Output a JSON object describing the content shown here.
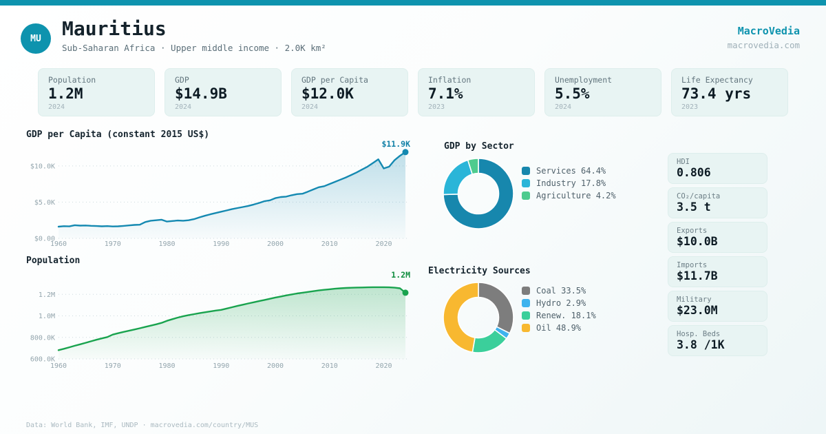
{
  "header": {
    "badge": "MU",
    "title": "Mauritius",
    "subtitle": "Sub-Saharan Africa · Upper middle income · 2.0K km²",
    "brand": "MacroVedia",
    "brand_url": "macrovedia.com"
  },
  "stats": {
    "items": [
      {
        "label": "Population",
        "value": "1.2M",
        "year": "2024"
      },
      {
        "label": "GDP",
        "value": "$14.9B",
        "year": "2024"
      },
      {
        "label": "GDP per Capita",
        "value": "$12.0K",
        "year": "2024"
      },
      {
        "label": "Inflation",
        "value": "7.1%",
        "year": "2023"
      },
      {
        "label": "Unemployment",
        "value": "5.5%",
        "year": "2024"
      },
      {
        "label": "Life Expectancy",
        "value": "73.4 yrs",
        "year": "2023"
      }
    ]
  },
  "side_cards": {
    "items": [
      {
        "label": "HDI",
        "value": "0.806"
      },
      {
        "label": "CO₂/capita",
        "value": "3.5 t"
      },
      {
        "label": "Exports",
        "value": "$10.0B"
      },
      {
        "label": "Imports",
        "value": "$11.7B"
      },
      {
        "label": "Military",
        "value": "$23.0M"
      },
      {
        "label": "Hosp. Beds",
        "value": "3.8 /1K"
      }
    ]
  },
  "footer": {
    "text": "Data: World Bank, IMF, UNDP · macrovedia.com/country/MUS"
  },
  "colors": {
    "accent": "#0e93ae",
    "gdp_line": "#1489b1",
    "pop_line": "#19a34e"
  },
  "chart_data": [
    {
      "type": "area",
      "title": "GDP per Capita (constant 2015 US$)",
      "x_start": 1960,
      "x_end": 2024,
      "values": [
        1620,
        1680,
        1650,
        1820,
        1760,
        1780,
        1730,
        1700,
        1660,
        1690,
        1640,
        1660,
        1720,
        1790,
        1850,
        1880,
        2250,
        2430,
        2500,
        2580,
        2320,
        2400,
        2460,
        2430,
        2500,
        2650,
        2900,
        3120,
        3320,
        3500,
        3680,
        3850,
        4030,
        4180,
        4330,
        4480,
        4670,
        4890,
        5130,
        5250,
        5550,
        5700,
        5760,
        5950,
        6100,
        6160,
        6450,
        6750,
        7050,
        7200,
        7500,
        7800,
        8100,
        8400,
        8750,
        9100,
        9500,
        9900,
        10400,
        10900,
        9650,
        9900,
        10800,
        11400,
        11900
      ],
      "ylim": [
        0,
        13500
      ],
      "yticks": [
        {
          "v": 0,
          "label": "$0.00"
        },
        {
          "v": 5000,
          "label": "$5.0K"
        },
        {
          "v": 10000,
          "label": "$10.0K"
        }
      ],
      "xticks": [
        {
          "v": 1960,
          "label": "1960"
        },
        {
          "v": 1970,
          "label": "1970"
        },
        {
          "v": 1980,
          "label": "1980"
        },
        {
          "v": 1990,
          "label": "1990"
        },
        {
          "v": 2000,
          "label": "2000"
        },
        {
          "v": 2010,
          "label": "2010"
        },
        {
          "v": 2020,
          "label": "2020"
        }
      ],
      "end_label": "$11.9K",
      "color": "#1489b1",
      "end_label_color": "#0f7fa6",
      "grid": true,
      "legend_position": "none"
    },
    {
      "type": "area",
      "title": "Population",
      "x_start": 1960,
      "x_end": 2024,
      "values": [
        681,
        694,
        708,
        722,
        736,
        750,
        764,
        778,
        791,
        803,
        826,
        839,
        851,
        862,
        873,
        885,
        897,
        909,
        921,
        935,
        954,
        969,
        984,
        996,
        1007,
        1016,
        1025,
        1033,
        1041,
        1049,
        1056,
        1068,
        1080,
        1092,
        1104,
        1115,
        1126,
        1137,
        1148,
        1159,
        1170,
        1180,
        1190,
        1199,
        1208,
        1215,
        1222,
        1229,
        1236,
        1242,
        1247,
        1252,
        1256,
        1259,
        1261,
        1263,
        1264,
        1265,
        1266,
        1266,
        1266,
        1265,
        1262,
        1256,
        1215
      ],
      "unit": "thousands",
      "ylim": [
        600,
        1400
      ],
      "yticks": [
        {
          "v": 600,
          "label": "600.0K"
        },
        {
          "v": 800,
          "label": "800.0K"
        },
        {
          "v": 1000,
          "label": "1.0M"
        },
        {
          "v": 1200,
          "label": "1.2M"
        }
      ],
      "xticks": [
        {
          "v": 1960,
          "label": "1960"
        },
        {
          "v": 1970,
          "label": "1970"
        },
        {
          "v": 1980,
          "label": "1980"
        },
        {
          "v": 1990,
          "label": "1990"
        },
        {
          "v": 2000,
          "label": "2000"
        },
        {
          "v": 2010,
          "label": "2010"
        },
        {
          "v": 2020,
          "label": "2020"
        }
      ],
      "end_label": "1.2M",
      "color": "#19a34e",
      "end_label_color": "#0e8c3d",
      "grid": true,
      "legend_position": "none"
    },
    {
      "type": "pie",
      "title": "GDP by Sector",
      "legend_position": "right",
      "slices": [
        {
          "label": "Services",
          "pct": 64.4,
          "color": "#1787ad",
          "legend": "Services 64.4%"
        },
        {
          "label": "Industry",
          "pct": 17.8,
          "color": "#2ab5d8",
          "legend": "Industry 17.8%"
        },
        {
          "label": "Agriculture",
          "pct": 4.2,
          "color": "#4ecb8e",
          "legend": "Agriculture 4.2%"
        }
      ]
    },
    {
      "type": "pie",
      "title": "Electricity Sources",
      "legend_position": "right",
      "slices": [
        {
          "label": "Coal",
          "pct": 33.5,
          "color": "#7d7d7d",
          "legend": "Coal 33.5%"
        },
        {
          "label": "Hydro",
          "pct": 2.9,
          "color": "#3eb3ee",
          "legend": "Hydro 2.9%"
        },
        {
          "label": "Renew.",
          "pct": 18.1,
          "color": "#3bcf9b",
          "legend": "Renew. 18.1%"
        },
        {
          "label": "Oil",
          "pct": 48.9,
          "color": "#f8b830",
          "legend": "Oil 48.9%"
        }
      ]
    }
  ]
}
